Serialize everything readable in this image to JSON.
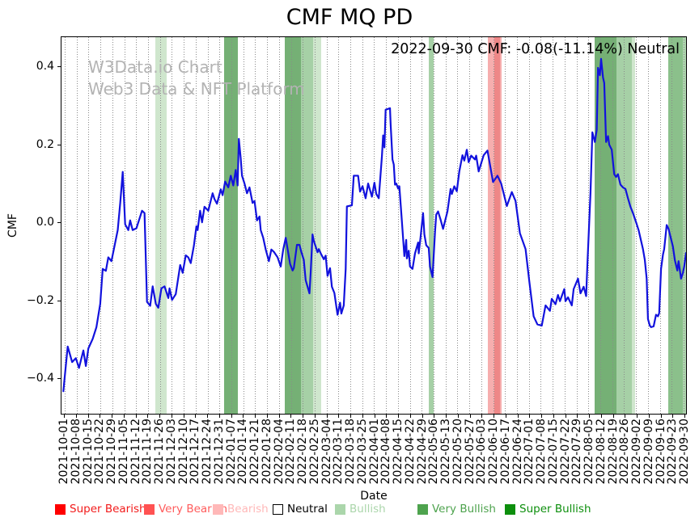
{
  "chart_data": {
    "type": "line",
    "title": "CMF MQ PD",
    "xlabel": "Date",
    "ylabel": "CMF",
    "annotation": "2022-09-30 CMF: -0.08(-11.14%) Neutral",
    "watermark": {
      "line1": "W3Data.io Chart",
      "line2": "Web3 Data & NFT Platform"
    },
    "x_range": [
      "2021-10-01",
      "2022-09-30"
    ],
    "ylim": [
      -0.493,
      0.477
    ],
    "y_tick_values": [
      0.4,
      0.2,
      0.0,
      -0.2,
      -0.4
    ],
    "y_tick_labels": [
      "0.4",
      "0.2",
      "0.0",
      "−0.2",
      "−0.4"
    ],
    "grid": "vertical-dotted-weekly",
    "legend_position": "bottom",
    "x_tick_labels": [
      "2021-10-01",
      "2021-10-08",
      "2021-10-15",
      "2021-10-22",
      "2021-10-29",
      "2021-11-05",
      "2021-11-12",
      "2021-11-19",
      "2021-11-26",
      "2021-12-03",
      "2021-12-10",
      "2021-12-17",
      "2021-12-24",
      "2021-12-31",
      "2022-01-07",
      "2022-01-14",
      "2022-01-21",
      "2022-01-28",
      "2022-02-04",
      "2022-02-11",
      "2022-02-18",
      "2022-02-25",
      "2022-03-04",
      "2022-03-11",
      "2022-03-18",
      "2022-03-25",
      "2022-04-01",
      "2022-04-08",
      "2022-04-15",
      "2022-04-22",
      "2022-04-29",
      "2022-05-06",
      "2022-05-13",
      "2022-05-20",
      "2022-05-27",
      "2022-06-03",
      "2022-06-10",
      "2022-06-17",
      "2022-06-24",
      "2022-07-01",
      "2022-07-08",
      "2022-07-15",
      "2022-07-22",
      "2022-07-29",
      "2022-08-05",
      "2022-08-12",
      "2022-08-19",
      "2022-08-26",
      "2022-09-02",
      "2022-09-09",
      "2022-09-16",
      "2022-09-23",
      "2022-09-30"
    ],
    "bands": [
      {
        "from": 0.15,
        "to": 0.168,
        "color": "#cfe6cd"
      },
      {
        "from": 0.261,
        "to": 0.282,
        "color": "#75b075"
      },
      {
        "from": 0.358,
        "to": 0.384,
        "color": "#75b075"
      },
      {
        "from": 0.384,
        "to": 0.403,
        "color": "#a6d0a6"
      },
      {
        "from": 0.403,
        "to": 0.416,
        "color": "#cfe6cd"
      },
      {
        "from": 0.588,
        "to": 0.596,
        "color": "#a6d0a6"
      },
      {
        "from": 0.683,
        "to": 0.693,
        "color": "#f6aeae"
      },
      {
        "from": 0.693,
        "to": 0.702,
        "color": "#ee8787"
      },
      {
        "from": 0.702,
        "to": 0.705,
        "color": "#f6aeae"
      },
      {
        "from": 0.854,
        "to": 0.888,
        "color": "#75b075"
      },
      {
        "from": 0.888,
        "to": 0.913,
        "color": "#a6d0a6"
      },
      {
        "from": 0.913,
        "to": 0.918,
        "color": "#cfe6cd"
      },
      {
        "from": 0.972,
        "to": 0.995,
        "color": "#8bc08b"
      },
      {
        "from": 0.995,
        "to": 1.0,
        "color": "#aed6ae"
      }
    ],
    "legend": [
      {
        "label": "Super Bearish",
        "color": "#ff0000",
        "text_color": "#f21b1b",
        "border": "#ff0000"
      },
      {
        "label": "Very Bearish",
        "color": "#ff5252",
        "text_color": "#ff5c5c",
        "border": "#ff5252"
      },
      {
        "label": "Bearish",
        "color": "#ffb8b8",
        "text_color": "#ffb8b8",
        "border": "#ffb8b8"
      },
      {
        "label": "Neutral",
        "color": "#ffffff",
        "text_color": "#000000",
        "border": "#000000"
      },
      {
        "label": "Bullish",
        "color": "#abd6ab",
        "text_color": "#abd6ab",
        "border": "#abd6ab"
      },
      {
        "label": "Very Bullish",
        "color": "#4ea34e",
        "text_color": "#4ea34e",
        "border": "#4ea34e"
      },
      {
        "label": "Super Bullish",
        "color": "#0d8f0d",
        "text_color": "#0d8f0d",
        "border": "#0d8f0d"
      }
    ],
    "series": [
      {
        "name": "CMF",
        "color": "#1212dd",
        "x_unit": "fraction of date range 2021-10-01 to 2022-09-30",
        "points": [
          [
            0.003,
            -0.435
          ],
          [
            0.01,
            -0.32
          ],
          [
            0.017,
            -0.36
          ],
          [
            0.023,
            -0.35
          ],
          [
            0.028,
            -0.375
          ],
          [
            0.035,
            -0.33
          ],
          [
            0.039,
            -0.37
          ],
          [
            0.043,
            -0.325
          ],
          [
            0.05,
            -0.3
          ],
          [
            0.056,
            -0.27
          ],
          [
            0.062,
            -0.21
          ],
          [
            0.066,
            -0.12
          ],
          [
            0.071,
            -0.125
          ],
          [
            0.075,
            -0.09
          ],
          [
            0.08,
            -0.1
          ],
          [
            0.085,
            -0.06
          ],
          [
            0.09,
            -0.02
          ],
          [
            0.094,
            0.05
          ],
          [
            0.098,
            0.13
          ],
          [
            0.102,
            -0.005
          ],
          [
            0.107,
            -0.02
          ],
          [
            0.11,
            0.005
          ],
          [
            0.114,
            -0.02
          ],
          [
            0.12,
            -0.015
          ],
          [
            0.129,
            0.03
          ],
          [
            0.133,
            0.024
          ],
          [
            0.137,
            -0.205
          ],
          [
            0.142,
            -0.215
          ],
          [
            0.146,
            -0.165
          ],
          [
            0.151,
            -0.21
          ],
          [
            0.155,
            -0.22
          ],
          [
            0.16,
            -0.17
          ],
          [
            0.165,
            -0.165
          ],
          [
            0.171,
            -0.195
          ],
          [
            0.173,
            -0.17
          ],
          [
            0.177,
            -0.2
          ],
          [
            0.183,
            -0.185
          ],
          [
            0.19,
            -0.11
          ],
          [
            0.194,
            -0.13
          ],
          [
            0.199,
            -0.085
          ],
          [
            0.203,
            -0.09
          ],
          [
            0.207,
            -0.105
          ],
          [
            0.212,
            -0.06
          ],
          [
            0.216,
            -0.01
          ],
          [
            0.218,
            -0.02
          ],
          [
            0.222,
            0.03
          ],
          [
            0.225,
            0.0
          ],
          [
            0.229,
            0.04
          ],
          [
            0.235,
            0.03
          ],
          [
            0.242,
            0.075
          ],
          [
            0.245,
            0.06
          ],
          [
            0.249,
            0.048
          ],
          [
            0.255,
            0.085
          ],
          [
            0.258,
            0.07
          ],
          [
            0.262,
            0.105
          ],
          [
            0.267,
            0.09
          ],
          [
            0.271,
            0.12
          ],
          [
            0.275,
            0.095
          ],
          [
            0.279,
            0.135
          ],
          [
            0.282,
            0.095
          ],
          [
            0.284,
            0.215
          ],
          [
            0.287,
            0.165
          ],
          [
            0.289,
            0.12
          ],
          [
            0.293,
            0.1
          ],
          [
            0.297,
            0.075
          ],
          [
            0.301,
            0.09
          ],
          [
            0.306,
            0.05
          ],
          [
            0.309,
            0.055
          ],
          [
            0.313,
            0.005
          ],
          [
            0.317,
            0.015
          ],
          [
            0.319,
            -0.02
          ],
          [
            0.323,
            -0.04
          ],
          [
            0.327,
            -0.07
          ],
          [
            0.332,
            -0.1
          ],
          [
            0.336,
            -0.07
          ],
          [
            0.34,
            -0.076
          ],
          [
            0.346,
            -0.09
          ],
          [
            0.351,
            -0.114
          ],
          [
            0.355,
            -0.07
          ],
          [
            0.359,
            -0.04
          ],
          [
            0.366,
            -0.107
          ],
          [
            0.37,
            -0.124
          ],
          [
            0.372,
            -0.118
          ],
          [
            0.377,
            -0.058
          ],
          [
            0.381,
            -0.058
          ],
          [
            0.384,
            -0.076
          ],
          [
            0.388,
            -0.097
          ],
          [
            0.391,
            -0.149
          ],
          [
            0.397,
            -0.183
          ],
          [
            0.399,
            -0.13
          ],
          [
            0.402,
            -0.031
          ],
          [
            0.404,
            -0.048
          ],
          [
            0.41,
            -0.077
          ],
          [
            0.412,
            -0.069
          ],
          [
            0.416,
            -0.083
          ],
          [
            0.42,
            -0.095
          ],
          [
            0.423,
            -0.086
          ],
          [
            0.426,
            -0.138
          ],
          [
            0.43,
            -0.118
          ],
          [
            0.433,
            -0.166
          ],
          [
            0.437,
            -0.182
          ],
          [
            0.442,
            -0.238
          ],
          [
            0.446,
            -0.207
          ],
          [
            0.448,
            -0.235
          ],
          [
            0.452,
            -0.214
          ],
          [
            0.455,
            -0.12
          ],
          [
            0.457,
            0.041
          ],
          [
            0.465,
            0.044
          ],
          [
            0.468,
            0.12
          ],
          [
            0.475,
            0.12
          ],
          [
            0.478,
            0.079
          ],
          [
            0.482,
            0.093
          ],
          [
            0.487,
            0.062
          ],
          [
            0.491,
            0.1
          ],
          [
            0.497,
            0.066
          ],
          [
            0.501,
            0.102
          ],
          [
            0.504,
            0.073
          ],
          [
            0.508,
            0.062
          ],
          [
            0.513,
            0.17
          ],
          [
            0.515,
            0.224
          ],
          [
            0.517,
            0.193
          ],
          [
            0.519,
            0.29
          ],
          [
            0.526,
            0.294
          ],
          [
            0.527,
            0.253
          ],
          [
            0.53,
            0.162
          ],
          [
            0.532,
            0.149
          ],
          [
            0.534,
            0.097
          ],
          [
            0.536,
            0.1
          ],
          [
            0.539,
            0.087
          ],
          [
            0.541,
            0.093
          ],
          [
            0.545,
            0.004
          ],
          [
            0.549,
            -0.087
          ],
          [
            0.552,
            -0.045
          ],
          [
            0.553,
            -0.093
          ],
          [
            0.556,
            -0.073
          ],
          [
            0.558,
            -0.114
          ],
          [
            0.562,
            -0.12
          ],
          [
            0.566,
            -0.08
          ],
          [
            0.571,
            -0.052
          ],
          [
            0.572,
            -0.08
          ],
          [
            0.575,
            -0.038
          ],
          [
            0.579,
            0.024
          ],
          [
            0.581,
            -0.031
          ],
          [
            0.584,
            -0.059
          ],
          [
            0.588,
            -0.066
          ],
          [
            0.59,
            -0.114
          ],
          [
            0.594,
            -0.141
          ],
          [
            0.598,
            -0.025
          ],
          [
            0.6,
            0.02
          ],
          [
            0.603,
            0.028
          ],
          [
            0.607,
            0.007
          ],
          [
            0.611,
            -0.017
          ],
          [
            0.618,
            0.028
          ],
          [
            0.623,
            0.086
          ],
          [
            0.625,
            0.073
          ],
          [
            0.629,
            0.093
          ],
          [
            0.633,
            0.08
          ],
          [
            0.637,
            0.131
          ],
          [
            0.642,
            0.173
          ],
          [
            0.645,
            0.159
          ],
          [
            0.649,
            0.187
          ],
          [
            0.652,
            0.155
          ],
          [
            0.656,
            0.172
          ],
          [
            0.662,
            0.162
          ],
          [
            0.664,
            0.172
          ],
          [
            0.668,
            0.131
          ],
          [
            0.672,
            0.152
          ],
          [
            0.676,
            0.173
          ],
          [
            0.682,
            0.185
          ],
          [
            0.691,
            0.104
          ],
          [
            0.698,
            0.12
          ],
          [
            0.704,
            0.1
          ],
          [
            0.713,
            0.042
          ],
          [
            0.721,
            0.078
          ],
          [
            0.727,
            0.055
          ],
          [
            0.734,
            -0.028
          ],
          [
            0.743,
            -0.069
          ],
          [
            0.749,
            -0.151
          ],
          [
            0.756,
            -0.242
          ],
          [
            0.762,
            -0.263
          ],
          [
            0.769,
            -0.266
          ],
          [
            0.775,
            -0.214
          ],
          [
            0.782,
            -0.228
          ],
          [
            0.785,
            -0.197
          ],
          [
            0.791,
            -0.211
          ],
          [
            0.795,
            -0.187
          ],
          [
            0.798,
            -0.203
          ],
          [
            0.805,
            -0.172
          ],
          [
            0.807,
            -0.203
          ],
          [
            0.811,
            -0.193
          ],
          [
            0.817,
            -0.214
          ],
          [
            0.82,
            -0.172
          ],
          [
            0.827,
            -0.145
          ],
          [
            0.831,
            -0.183
          ],
          [
            0.836,
            -0.166
          ],
          [
            0.84,
            -0.19
          ],
          [
            0.842,
            -0.11
          ],
          [
            0.845,
            0.0
          ],
          [
            0.847,
            0.077
          ],
          [
            0.85,
            0.232
          ],
          [
            0.854,
            0.207
          ],
          [
            0.857,
            0.238
          ],
          [
            0.859,
            0.398
          ],
          [
            0.862,
            0.379
          ],
          [
            0.864,
            0.421
          ],
          [
            0.867,
            0.373
          ],
          [
            0.869,
            0.359
          ],
          [
            0.872,
            0.207
          ],
          [
            0.875,
            0.222
          ],
          [
            0.877,
            0.2
          ],
          [
            0.881,
            0.187
          ],
          [
            0.885,
            0.124
          ],
          [
            0.888,
            0.117
          ],
          [
            0.891,
            0.124
          ],
          [
            0.895,
            0.097
          ],
          [
            0.899,
            0.09
          ],
          [
            0.903,
            0.086
          ],
          [
            0.907,
            0.062
          ],
          [
            0.911,
            0.04
          ],
          [
            0.915,
            0.024
          ],
          [
            0.92,
            0.0
          ],
          [
            0.924,
            -0.02
          ],
          [
            0.928,
            -0.048
          ],
          [
            0.931,
            -0.069
          ],
          [
            0.934,
            -0.097
          ],
          [
            0.937,
            -0.145
          ],
          [
            0.939,
            -0.249
          ],
          [
            0.942,
            -0.266
          ],
          [
            0.944,
            -0.27
          ],
          [
            0.948,
            -0.268
          ],
          [
            0.952,
            -0.238
          ],
          [
            0.955,
            -0.242
          ],
          [
            0.957,
            -0.234
          ],
          [
            0.96,
            -0.12
          ],
          [
            0.963,
            -0.083
          ],
          [
            0.965,
            -0.069
          ],
          [
            0.969,
            -0.007
          ],
          [
            0.972,
            -0.017
          ],
          [
            0.979,
            -0.062
          ],
          [
            0.982,
            -0.097
          ],
          [
            0.986,
            -0.124
          ],
          [
            0.988,
            -0.1
          ],
          [
            0.992,
            -0.145
          ],
          [
            0.995,
            -0.13
          ],
          [
            0.997,
            -0.114
          ],
          [
            1.0,
            -0.079
          ]
        ]
      }
    ]
  }
}
